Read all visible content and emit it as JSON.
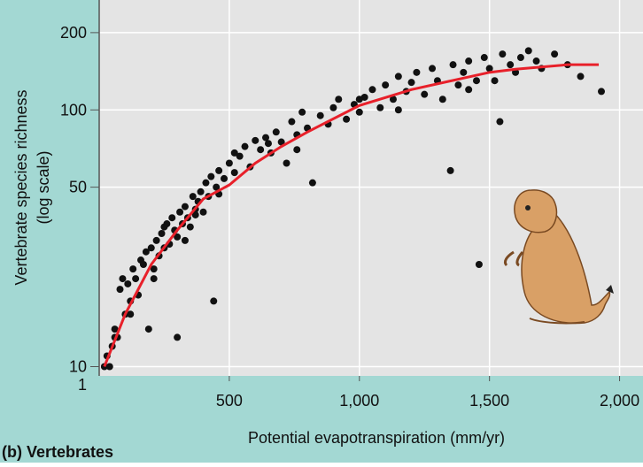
{
  "chart_data": {
    "type": "scatter",
    "ylabel": "Vertebrate species richness",
    "ylabel_note": "(log scale)",
    "xlabel": "Potential evapotranspiration (mm/yr)",
    "panel_label": "(b) Vertebrates",
    "axis_break_label": "1",
    "xlim": [
      0,
      2090
    ],
    "ylim": [
      9.2,
      268
    ],
    "y_log_scale": true,
    "grid": true,
    "xticks": [
      {
        "value": 500,
        "label": "500"
      },
      {
        "value": 1000,
        "label": "1,000"
      },
      {
        "value": 1500,
        "label": "1,500"
      },
      {
        "value": 2000,
        "label": "2,000"
      }
    ],
    "yticks": [
      10,
      50,
      100,
      200
    ],
    "series": [
      {
        "color": "#111111",
        "x": [
          20,
          30,
          40,
          50,
          60,
          70,
          80,
          90,
          100,
          110,
          120,
          130,
          140,
          150,
          160,
          170,
          180,
          190,
          200,
          210,
          220,
          230,
          240,
          250,
          260,
          270,
          280,
          290,
          300,
          300,
          310,
          320,
          330,
          340,
          350,
          360,
          370,
          380,
          390,
          400,
          410,
          420,
          430,
          440,
          450,
          460,
          480,
          500,
          520,
          540,
          560,
          580,
          600,
          620,
          640,
          660,
          680,
          700,
          720,
          740,
          760,
          780,
          800,
          820,
          850,
          880,
          900,
          920,
          950,
          980,
          1000,
          1020,
          1050,
          1080,
          1100,
          1130,
          1150,
          1180,
          1200,
          1220,
          1250,
          1280,
          1300,
          1320,
          1350,
          1360,
          1380,
          1400,
          1420,
          1450,
          1460,
          1480,
          1500,
          1520,
          1540,
          1550,
          1580,
          1600,
          1620,
          1650,
          1680,
          1700,
          1750,
          1800,
          1850,
          1930,
          60,
          120,
          210,
          250,
          330,
          370,
          460,
          520,
          650,
          760,
          1000,
          1150,
          1420
        ],
        "values": [
          10,
          11,
          10,
          12,
          14,
          13,
          20,
          22,
          16,
          21,
          18,
          24,
          22,
          19,
          26,
          25,
          28,
          14,
          29,
          24,
          31,
          27,
          33,
          29,
          36,
          30,
          38,
          34,
          32,
          13,
          40,
          36,
          42,
          38,
          35,
          46,
          41,
          44,
          48,
          40,
          52,
          46,
          55,
          18,
          50,
          58,
          54,
          62,
          57,
          66,
          72,
          60,
          76,
          70,
          78,
          68,
          82,
          75,
          62,
          90,
          80,
          98,
          85,
          52,
          95,
          88,
          102,
          110,
          92,
          105,
          98,
          112,
          120,
          102,
          125,
          110,
          135,
          118,
          128,
          140,
          115,
          145,
          130,
          110,
          58,
          150,
          125,
          140,
          155,
          130,
          25,
          160,
          145,
          130,
          90,
          165,
          150,
          140,
          160,
          170,
          155,
          145,
          165,
          150,
          135,
          118,
          13,
          16,
          22,
          35,
          31,
          39,
          47,
          68,
          74,
          70,
          110,
          100,
          120
        ]
      }
    ],
    "fit": {
      "type": "line",
      "color": "#e8202a",
      "x": [
        20,
        100,
        200,
        300,
        400,
        500,
        600,
        700,
        800,
        1000,
        1200,
        1400,
        1500,
        1600,
        1800,
        1920
      ],
      "values": [
        10,
        16,
        25,
        34,
        45,
        51,
        62,
        72,
        82,
        104,
        120,
        133,
        140,
        144,
        150,
        150
      ]
    }
  }
}
